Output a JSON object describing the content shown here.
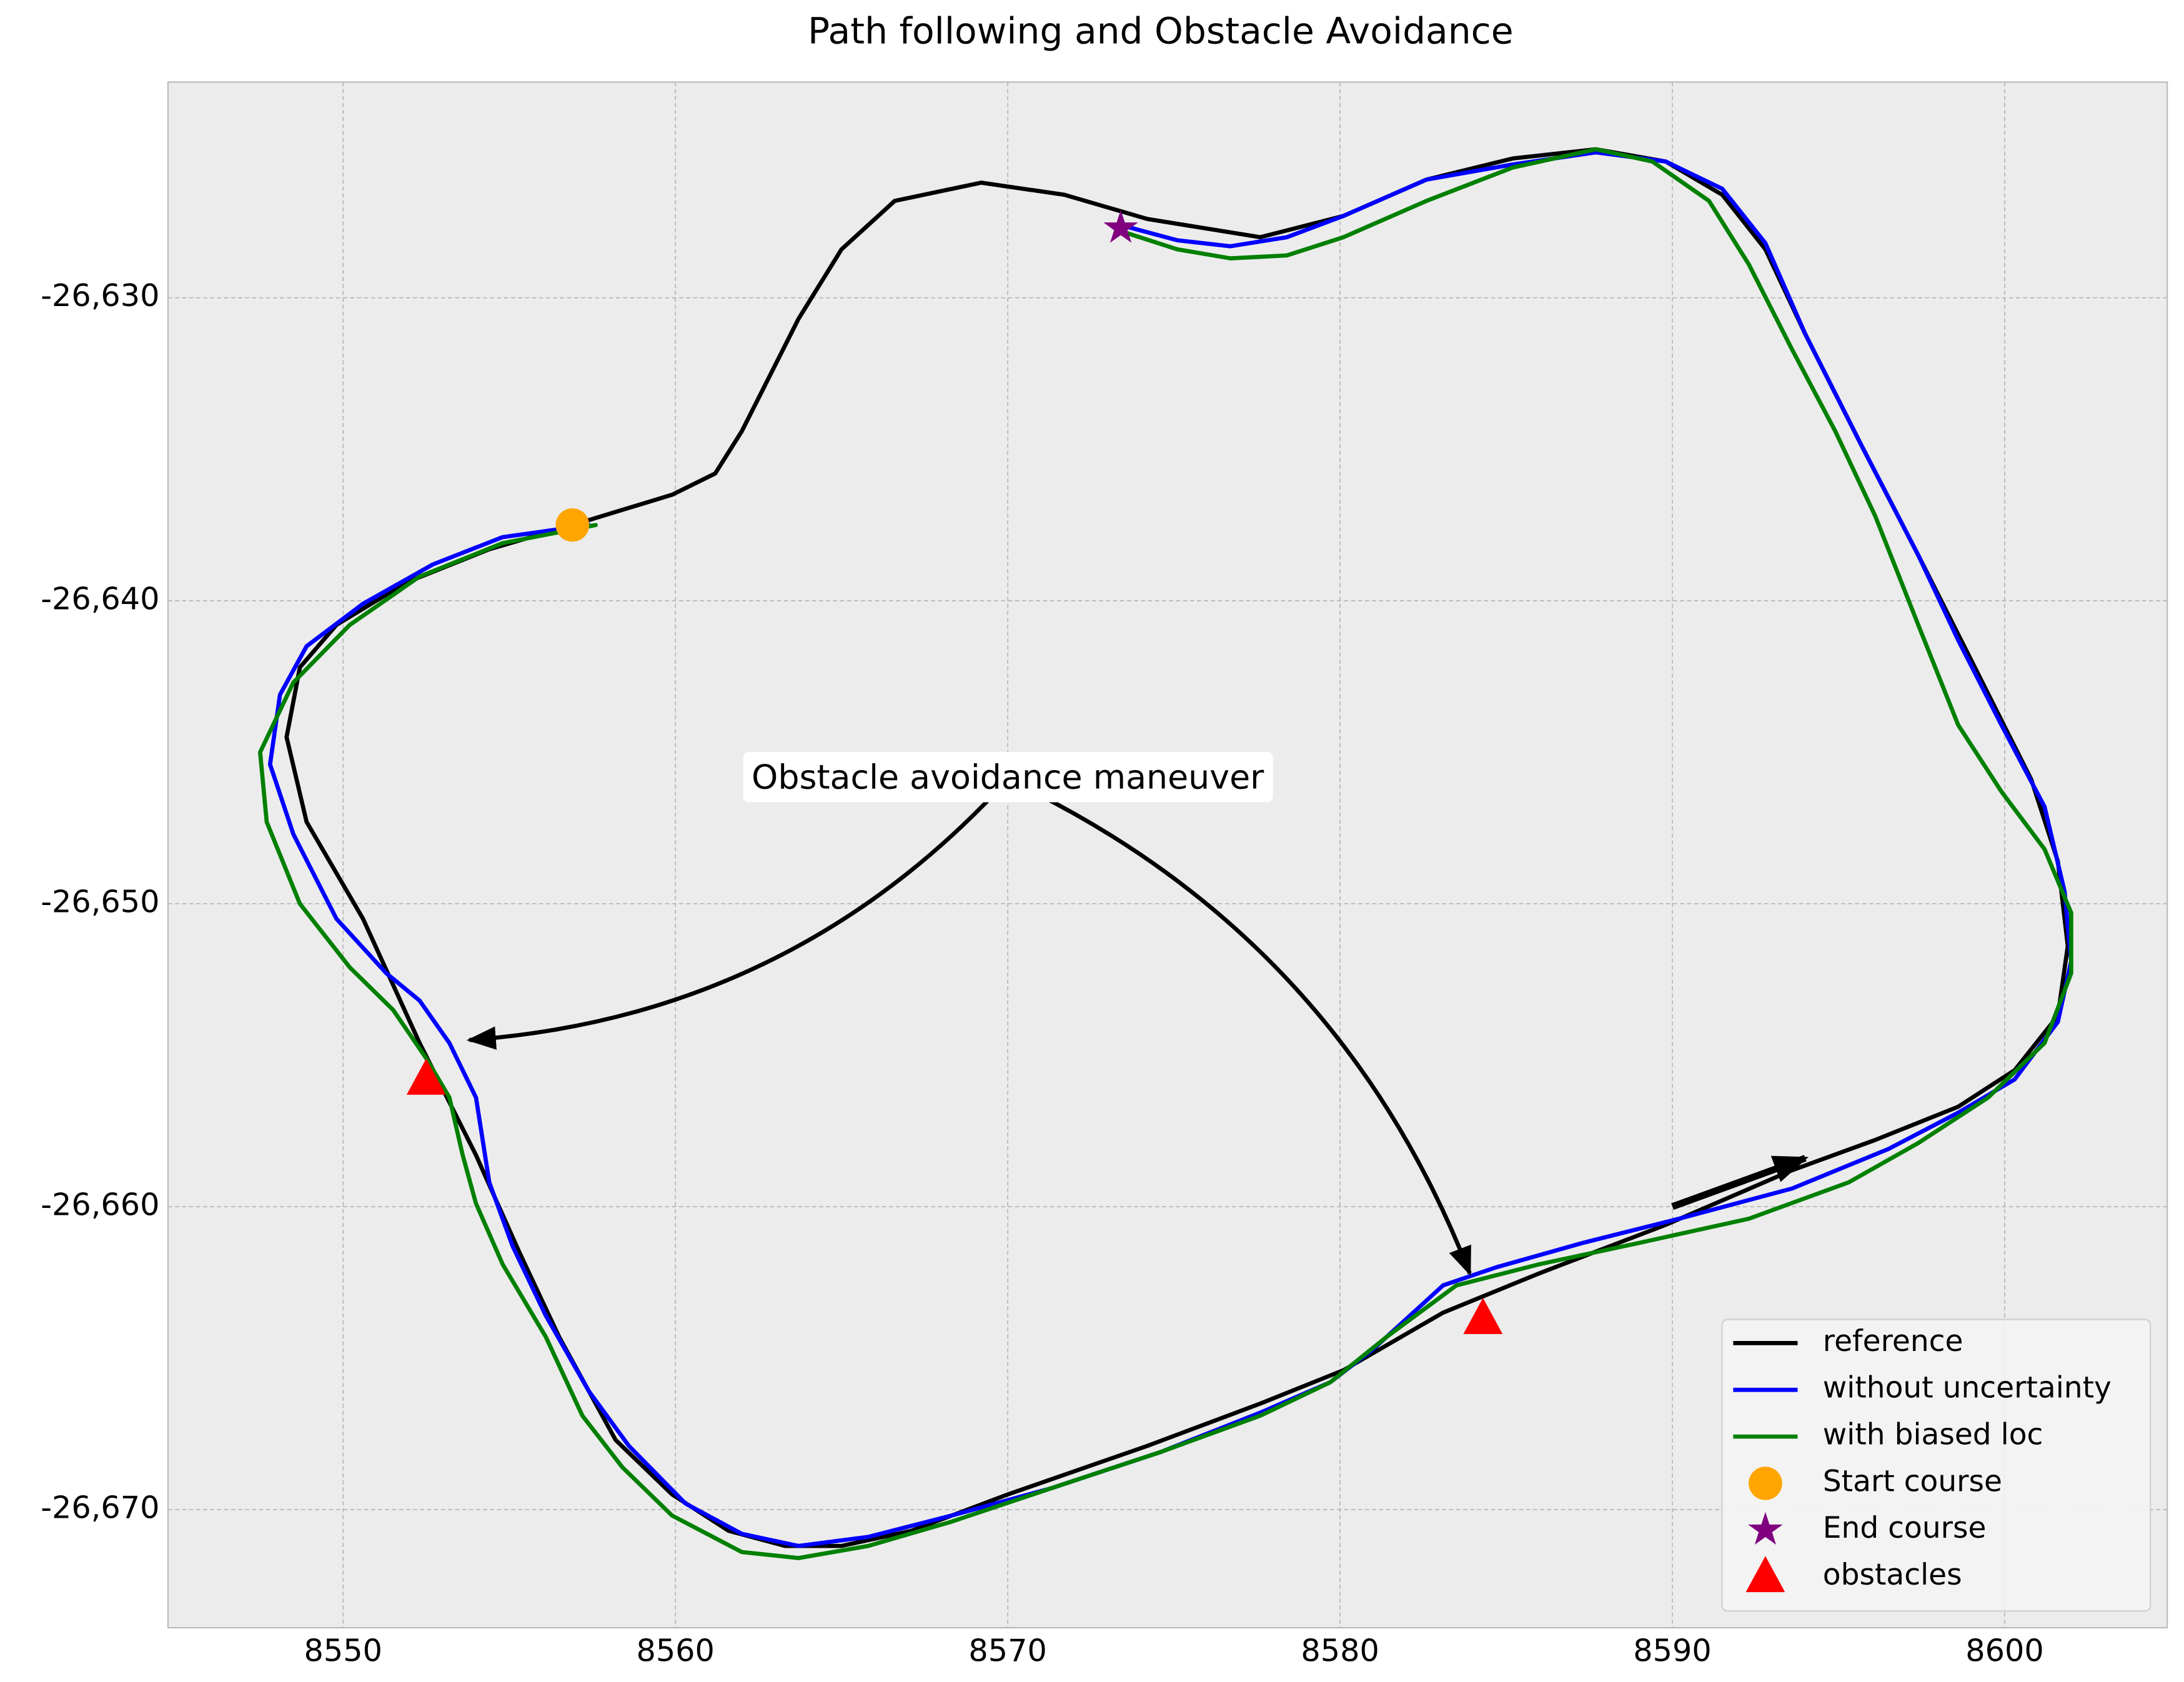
{
  "chart_data": {
    "type": "line",
    "title": "Path following and Obstacle Avoidance",
    "xlim": [
      8544.73,
      8604.89
    ],
    "ylim": [
      -26673.9,
      -26622.88
    ],
    "xticks": [
      8550,
      8560,
      8570,
      8580,
      8590,
      8600
    ],
    "yticks": [
      {
        "value": -26630,
        "label": "-26,630"
      },
      {
        "value": -26640,
        "label": "-26,640"
      },
      {
        "value": -26650,
        "label": "-26,650"
      },
      {
        "value": -26660,
        "label": "-26,660"
      },
      {
        "value": -26670,
        "label": "-26,670"
      }
    ],
    "grid": true,
    "legend": "lower right",
    "series": [
      {
        "name": "reference",
        "color": "#000000",
        "x": [
          8556.9,
          8559.9,
          8561.2,
          8562.0,
          8563.7,
          8565.0,
          8566.6,
          8569.2,
          8571.7,
          8574.2,
          8577.6,
          8580.1,
          8582.6,
          8585.2,
          8587.7,
          8589.8,
          8591.5,
          8592.8,
          8594.0,
          8595.7,
          8597.4,
          8599.1,
          8600.8,
          8601.6,
          8601.9,
          8601.6,
          8600.3,
          8598.6,
          8596.1,
          8593.6,
          8589.8,
          8586.0,
          8583.1,
          8580.1,
          8577.6,
          8574.2,
          8570.0,
          8567.1,
          8565.0,
          8563.3,
          8561.6,
          8559.9,
          8558.2,
          8556.5,
          8555.3,
          8554.0,
          8552.3,
          8550.6,
          8548.9,
          8548.3,
          8548.7,
          8549.8,
          8551.9,
          8554.4,
          8556.9
        ],
        "values": [
          -26637.5,
          -26636.5,
          -26635.8,
          -26634.4,
          -26630.7,
          -26628.4,
          -26626.8,
          -26626.2,
          -26626.6,
          -26627.4,
          -26628.0,
          -26627.3,
          -26626.1,
          -26625.4,
          -26625.1,
          -26625.5,
          -26626.6,
          -26628.4,
          -26631.2,
          -26634.9,
          -26638.5,
          -26642.2,
          -26645.9,
          -26648.6,
          -26651.4,
          -26653.7,
          -26655.5,
          -26656.7,
          -26657.8,
          -26658.8,
          -26660.6,
          -26662.2,
          -26663.5,
          -26665.4,
          -26666.5,
          -26667.9,
          -26669.5,
          -26670.7,
          -26671.2,
          -26671.2,
          -26670.7,
          -26669.5,
          -26667.7,
          -26664.3,
          -26661.5,
          -26658.3,
          -26654.6,
          -26650.5,
          -26647.3,
          -26644.5,
          -26642.2,
          -26640.8,
          -26639.4,
          -26638.3,
          -26637.5
        ]
      },
      {
        "name": "without uncertainty",
        "color": "#0000ff",
        "x": [
          8557.4,
          8554.8,
          8552.7,
          8550.6,
          8548.9,
          8548.1,
          8547.8,
          8548.5,
          8549.8,
          8551.3,
          8552.3,
          8553.2,
          8554.0,
          8554.4,
          8555.1,
          8556.1,
          8557.4,
          8558.6,
          8560.3,
          8562.0,
          8563.7,
          8565.8,
          8568.3,
          8571.3,
          8574.6,
          8577.6,
          8579.7,
          8581.0,
          8583.1,
          8584.7,
          8587.3,
          8590.2,
          8593.6,
          8596.5,
          8598.6,
          8600.3,
          8601.6,
          8602.0,
          8601.8,
          8601.2,
          8599.9,
          8598.6,
          8597.4,
          8595.7,
          8594.0,
          8592.8,
          8591.5,
          8589.8,
          8587.7,
          8585.2,
          8582.6,
          8580.1,
          8578.4,
          8576.7,
          8575.1,
          8573.4
        ],
        "values": [
          -26637.5,
          -26637.9,
          -26638.8,
          -26640.1,
          -26641.5,
          -26643.1,
          -26645.4,
          -26647.7,
          -26650.5,
          -26652.3,
          -26653.2,
          -26654.6,
          -26656.4,
          -26659.2,
          -26661.3,
          -26663.6,
          -26666.1,
          -26667.9,
          -26669.8,
          -26670.8,
          -26671.2,
          -26670.9,
          -26670.2,
          -26669.3,
          -26668.1,
          -26666.8,
          -26665.8,
          -26664.7,
          -26662.6,
          -26662.0,
          -26661.2,
          -26660.4,
          -26659.4,
          -26658.1,
          -26656.9,
          -26655.8,
          -26653.9,
          -26651.9,
          -26649.6,
          -26646.8,
          -26644.1,
          -26641.3,
          -26638.5,
          -26634.9,
          -26631.2,
          -26628.2,
          -26626.4,
          -26625.5,
          -26625.2,
          -26625.6,
          -26626.1,
          -26627.3,
          -26628.0,
          -26628.3,
          -26628.1,
          -26627.6
        ]
      },
      {
        "name": "with biased loc",
        "color": "#008000",
        "x": [
          8557.6,
          8554.8,
          8552.3,
          8550.2,
          8548.5,
          8547.5,
          8547.7,
          8548.7,
          8550.2,
          8551.5,
          8552.5,
          8553.2,
          8553.6,
          8554.0,
          8554.8,
          8556.1,
          8557.2,
          8558.4,
          8559.9,
          8562.0,
          8563.7,
          8565.8,
          8568.3,
          8571.3,
          8574.6,
          8577.6,
          8579.7,
          8581.4,
          8583.5,
          8586.0,
          8589.0,
          8592.3,
          8595.3,
          8597.4,
          8599.5,
          8601.2,
          8602.0,
          8602.0,
          8601.2,
          8599.9,
          8598.6,
          8597.4,
          8596.1,
          8594.9,
          8593.6,
          8592.3,
          8591.1,
          8589.4,
          8587.7,
          8585.2,
          8582.6,
          8580.1,
          8578.4,
          8576.7,
          8575.1,
          8573.4
        ],
        "values": [
          -26637.5,
          -26638.1,
          -26639.2,
          -26640.8,
          -26642.7,
          -26645.0,
          -26647.3,
          -26650.0,
          -26652.1,
          -26653.5,
          -26655.1,
          -26656.4,
          -26658.3,
          -26659.9,
          -26661.9,
          -26664.3,
          -26666.9,
          -26668.6,
          -26670.2,
          -26671.4,
          -26671.6,
          -26671.2,
          -26670.4,
          -26669.3,
          -26668.1,
          -26666.9,
          -26665.8,
          -26664.3,
          -26662.6,
          -26661.9,
          -26661.2,
          -26660.4,
          -26659.2,
          -26657.9,
          -26656.4,
          -26654.6,
          -26652.3,
          -26650.3,
          -26648.2,
          -26646.3,
          -26644.1,
          -26640.8,
          -26637.2,
          -26634.4,
          -26631.7,
          -26628.9,
          -26626.8,
          -26625.5,
          -26625.1,
          -26625.7,
          -26626.8,
          -26628.0,
          -26628.6,
          -26628.7,
          -26628.4,
          -26627.8
        ]
      }
    ],
    "markers": [
      {
        "name": "Start course",
        "color": "#ffa500",
        "marker": "circle",
        "x": [
          8556.9
        ],
        "values": [
          -26637.5
        ]
      },
      {
        "name": "End course",
        "color": "#800080",
        "marker": "star",
        "x": [
          8573.4
        ],
        "values": [
          -26627.7
        ]
      },
      {
        "name": "obstacles",
        "color": "#ff0000",
        "marker": "triangle",
        "x": [
          8552.5,
          8584.3
        ],
        "values": [
          -26655.8,
          -26663.7
        ]
      }
    ],
    "annotation": {
      "text": "Obstacle avoidance maneuver",
      "x": 8570.0,
      "y": -26645.9,
      "targets": [
        {
          "x": 8553.8,
          "y": -26654.5
        },
        {
          "x": 8583.9,
          "y": -26662.2
        }
      ]
    },
    "direction_arrow": {
      "x": [
        8590.0,
        8594.0
      ],
      "y": [
        -26660.0,
        -26658.4
      ]
    }
  }
}
